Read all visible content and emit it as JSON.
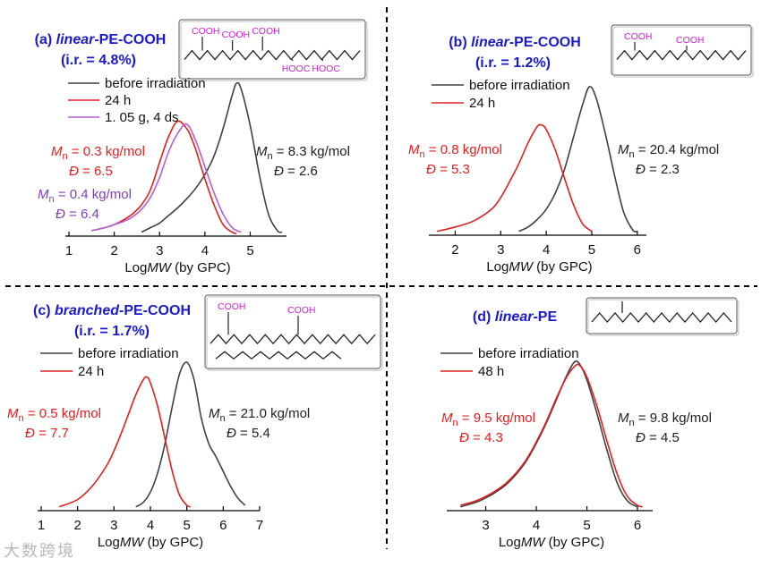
{
  "watermark": "大数跨境",
  "chart_data": [
    {
      "id": "a",
      "type": "line",
      "label": "(a)",
      "polymer_style": "linear",
      "polymer_suffix": "-PE-COOH",
      "ir": "(i.r. = 4.8%)",
      "xlabel": "LogMW (by GPC)",
      "xticks": [
        1,
        2,
        3,
        4,
        5
      ],
      "xlim": [
        1.0,
        5.8
      ],
      "ylim": [
        0,
        1.0
      ],
      "legend": [
        "before irradiation",
        "24 h",
        "1. 05 g, 4 ds"
      ],
      "series": [
        {
          "name": "before irradiation",
          "color": "#404040",
          "x": [
            2.6,
            2.8,
            3.0,
            3.2,
            3.4,
            3.6,
            3.8,
            4.0,
            4.2,
            4.4,
            4.6,
            4.7,
            4.8,
            5.0,
            5.2,
            5.4,
            5.6,
            5.7
          ],
          "y": [
            0.02,
            0.05,
            0.08,
            0.13,
            0.18,
            0.24,
            0.31,
            0.4,
            0.52,
            0.7,
            0.92,
            1.0,
            0.96,
            0.72,
            0.4,
            0.14,
            0.03,
            0.02
          ]
        },
        {
          "name": "24 h",
          "color": "#e02020",
          "x": [
            1.5,
            1.8,
            2.0,
            2.2,
            2.4,
            2.6,
            2.8,
            3.0,
            3.2,
            3.4,
            3.6,
            3.7,
            3.8,
            4.0,
            4.2,
            4.4,
            4.6,
            4.7
          ],
          "y": [
            0.03,
            0.05,
            0.07,
            0.1,
            0.14,
            0.2,
            0.3,
            0.48,
            0.65,
            0.75,
            0.7,
            0.64,
            0.56,
            0.37,
            0.2,
            0.07,
            0.02,
            0.01
          ]
        },
        {
          "name": "1. 05 g, 4 ds",
          "color": "#b060d8",
          "x": [
            1.5,
            1.8,
            2.0,
            2.2,
            2.4,
            2.6,
            2.8,
            3.0,
            3.2,
            3.4,
            3.6,
            3.8,
            4.0,
            4.2,
            4.4,
            4.6,
            4.8
          ],
          "y": [
            0.03,
            0.05,
            0.07,
            0.09,
            0.12,
            0.17,
            0.25,
            0.38,
            0.55,
            0.67,
            0.73,
            0.62,
            0.45,
            0.28,
            0.14,
            0.05,
            0.02
          ]
        }
      ],
      "annotations": [
        {
          "line1": "M",
          "sub1": "n",
          "val1": " = 0.3 kg/mol",
          "line2": "Đ",
          "val2": " = 6.5",
          "color": "#e02020"
        },
        {
          "line1": "M",
          "sub1": "n",
          "val1": " = 0.4 kg/mol",
          "line2": "Đ",
          "val2": " = 6.4",
          "color": "#8040b0"
        },
        {
          "line1": "M",
          "sub1": "n",
          "val1": " = 8.3 kg/mol",
          "line2": "Đ",
          "val2": " = 2.6",
          "color": "#202020"
        }
      ],
      "structure_labels": [
        "COOH",
        "COOH",
        "COOH",
        "HOOC",
        "HOOC"
      ]
    },
    {
      "id": "b",
      "type": "line",
      "label": "(b)",
      "polymer_style": "linear",
      "polymer_suffix": "-PE-COOH",
      "ir": "(i.r. = 1.2%)",
      "xlabel": "LogMW (by GPC)",
      "xticks": [
        2,
        3,
        4,
        5,
        6
      ],
      "xlim": [
        1.5,
        6.2
      ],
      "ylim": [
        0,
        1.0
      ],
      "legend": [
        "before irradiation",
        "24 h"
      ],
      "series": [
        {
          "name": "before irradiation",
          "color": "#404040",
          "x": [
            3.4,
            3.6,
            3.8,
            4.0,
            4.2,
            4.4,
            4.6,
            4.8,
            4.95,
            5.1,
            5.3,
            5.5,
            5.7,
            5.9,
            6.0
          ],
          "y": [
            0.02,
            0.05,
            0.1,
            0.17,
            0.28,
            0.44,
            0.66,
            0.88,
            1.0,
            0.92,
            0.68,
            0.4,
            0.15,
            0.03,
            0.02
          ]
        },
        {
          "name": "24 h",
          "color": "#e02020",
          "x": [
            1.6,
            2.0,
            2.4,
            2.8,
            3.0,
            3.2,
            3.4,
            3.6,
            3.8,
            3.9,
            4.0,
            4.2,
            4.4,
            4.6,
            4.8,
            5.0
          ],
          "y": [
            0.02,
            0.05,
            0.09,
            0.17,
            0.25,
            0.36,
            0.48,
            0.62,
            0.73,
            0.74,
            0.71,
            0.57,
            0.38,
            0.2,
            0.07,
            0.02
          ]
        }
      ],
      "annotations": [
        {
          "line1": "M",
          "sub1": "n",
          "val1": " = 0.8 kg/mol",
          "line2": "Đ",
          "val2": " = 5.3",
          "color": "#e02020"
        },
        {
          "line1": "M",
          "sub1": "n",
          "val1": " = 20.4 kg/mol",
          "line2": "Đ",
          "val2": " = 2.3",
          "color": "#202020"
        }
      ],
      "structure_labels": [
        "COOH",
        "COOH"
      ]
    },
    {
      "id": "c",
      "type": "line",
      "label": "(c)",
      "polymer_style": "branched",
      "polymer_suffix": "-PE-COOH",
      "ir": "(i.r. = 1.7%)",
      "xlabel": "LogMW (by GPC)",
      "xticks": [
        1,
        2,
        3,
        4,
        5,
        6,
        7
      ],
      "xlim": [
        1.0,
        7.0
      ],
      "ylim": [
        0,
        1.0
      ],
      "legend": [
        "before irradiation",
        "24 h"
      ],
      "series": [
        {
          "name": "before irradiation",
          "color": "#404040",
          "x": [
            3.6,
            3.8,
            4.0,
            4.2,
            4.4,
            4.6,
            4.8,
            5.0,
            5.2,
            5.4,
            5.6,
            5.8,
            6.0,
            6.2,
            6.4,
            6.6
          ],
          "y": [
            0.02,
            0.05,
            0.12,
            0.25,
            0.45,
            0.7,
            0.92,
            1.0,
            0.88,
            0.62,
            0.45,
            0.36,
            0.26,
            0.16,
            0.08,
            0.03
          ]
        },
        {
          "name": "24 h",
          "color": "#e02020",
          "x": [
            1.5,
            2.0,
            2.4,
            2.8,
            3.0,
            3.2,
            3.4,
            3.6,
            3.8,
            3.9,
            4.0,
            4.2,
            4.4,
            4.6,
            4.8,
            5.0,
            5.1
          ],
          "y": [
            0.02,
            0.07,
            0.16,
            0.3,
            0.4,
            0.52,
            0.65,
            0.78,
            0.88,
            0.9,
            0.86,
            0.7,
            0.48,
            0.26,
            0.1,
            0.03,
            0.02
          ]
        }
      ],
      "annotations": [
        {
          "line1": "M",
          "sub1": "n",
          "val1": " = 0.5 kg/mol",
          "line2": "Đ",
          "val2": " = 7.7",
          "color": "#e02020"
        },
        {
          "line1": "M",
          "sub1": "n",
          "val1": " = 21.0 kg/mol",
          "line2": "Đ",
          "val2": " = 5.4",
          "color": "#202020"
        }
      ],
      "structure_labels": [
        "COOH",
        "COOH"
      ]
    },
    {
      "id": "d",
      "type": "line",
      "label": "(d)",
      "polymer_style": "linear",
      "polymer_suffix": "-PE",
      "ir": "",
      "xlabel": "LogMW (by GPC)",
      "xticks": [
        3,
        4,
        5,
        6
      ],
      "xlim": [
        2.3,
        6.3
      ],
      "ylim": [
        0,
        1.0
      ],
      "legend": [
        "before irradiation",
        "48 h"
      ],
      "series": [
        {
          "name": "before irradiation",
          "color": "#404040",
          "x": [
            2.5,
            2.8,
            3.0,
            3.2,
            3.4,
            3.6,
            3.8,
            4.0,
            4.2,
            4.4,
            4.6,
            4.75,
            4.85,
            5.0,
            5.2,
            5.4,
            5.6,
            5.8,
            6.0
          ],
          "y": [
            0.02,
            0.05,
            0.08,
            0.12,
            0.17,
            0.24,
            0.33,
            0.45,
            0.59,
            0.75,
            0.91,
            1.0,
            0.99,
            0.88,
            0.65,
            0.4,
            0.18,
            0.06,
            0.02
          ]
        },
        {
          "name": "48 h",
          "color": "#e02020",
          "x": [
            2.5,
            2.8,
            3.0,
            3.2,
            3.4,
            3.6,
            3.8,
            4.0,
            4.2,
            4.4,
            4.6,
            4.75,
            4.85,
            5.0,
            5.2,
            5.4,
            5.6,
            5.8,
            6.0,
            6.1
          ],
          "y": [
            0.03,
            0.06,
            0.09,
            0.13,
            0.18,
            0.25,
            0.34,
            0.46,
            0.6,
            0.76,
            0.9,
            0.97,
            0.98,
            0.9,
            0.7,
            0.46,
            0.24,
            0.09,
            0.03,
            0.02
          ]
        }
      ],
      "annotations": [
        {
          "line1": "M",
          "sub1": "n",
          "val1": " = 9.5 kg/mol",
          "line2": "Đ",
          "val2": " = 4.3",
          "color": "#e02020"
        },
        {
          "line1": "M",
          "sub1": "n",
          "val1": " = 9.8 kg/mol",
          "line2": "Đ",
          "val2": " = 4.5",
          "color": "#202020"
        }
      ],
      "structure_labels": []
    }
  ]
}
